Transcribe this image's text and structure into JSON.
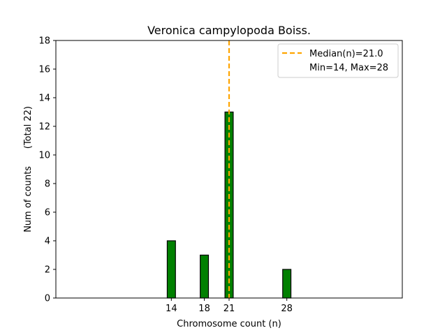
{
  "chart_data": {
    "type": "bar",
    "title": "Veronica campylopoda Boiss.",
    "xlabel": "Chromosome count (n)",
    "ylabel": "Num of counts      (Total 22)",
    "x_ticks": [
      14,
      18,
      21,
      28
    ],
    "xlim": [
      0,
      42
    ],
    "ylim": [
      0,
      18
    ],
    "y_ticks": [
      0,
      2,
      4,
      6,
      8,
      10,
      12,
      14,
      16,
      18
    ],
    "bar_width": 1,
    "bars": [
      {
        "x": 14,
        "value": 4
      },
      {
        "x": 18,
        "value": 3
      },
      {
        "x": 21,
        "value": 13
      },
      {
        "x": 28,
        "value": 2
      }
    ],
    "baseline_xrange": [
      0,
      31.5
    ],
    "median": 21.0,
    "min": 14,
    "max": 28,
    "bar_color": "#008000",
    "median_color": "#FFA500",
    "legend": {
      "position": "top-right",
      "entries": [
        "Median(n)=21.0",
        "Min=14, Max=28"
      ]
    }
  }
}
